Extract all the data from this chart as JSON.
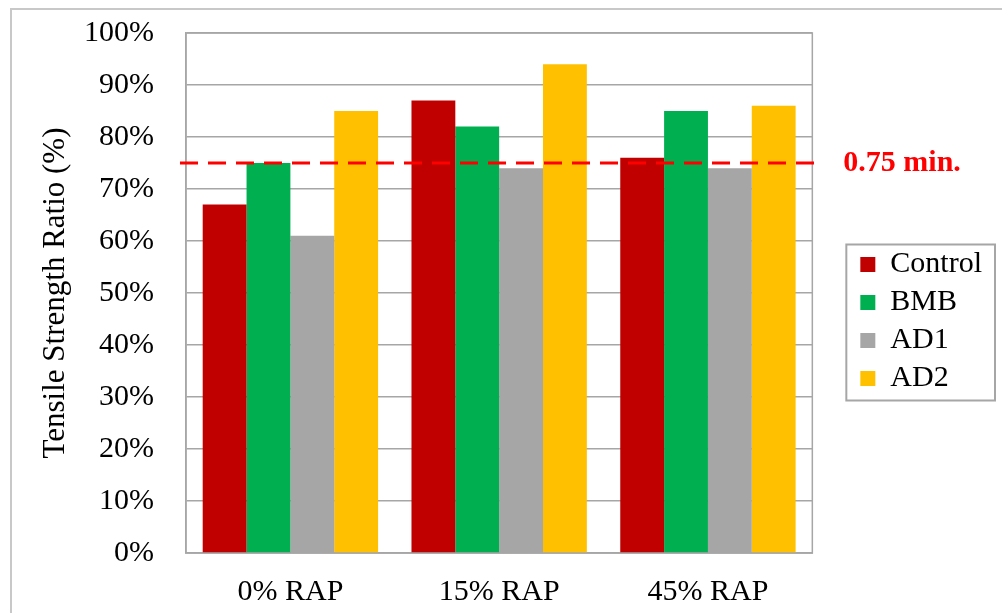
{
  "chart_data": {
    "type": "bar",
    "categories": [
      "0% RAP",
      "15% RAP",
      "45% RAP"
    ],
    "series": [
      {
        "name": "Control",
        "color": "#c00000",
        "values": [
          67,
          87,
          76
        ]
      },
      {
        "name": "BMB",
        "color": "#00b050",
        "values": [
          75,
          82,
          85
        ]
      },
      {
        "name": "AD1",
        "color": "#a6a6a6",
        "values": [
          61,
          74,
          74
        ]
      },
      {
        "name": "AD2",
        "color": "#ffc000",
        "values": [
          85,
          94,
          86
        ]
      }
    ],
    "ylabel": "Tensile Strength Ratio (%)",
    "ylim": [
      0,
      100
    ],
    "yticks": [
      {
        "value": 0,
        "label": "0%"
      },
      {
        "value": 10,
        "label": "10%"
      },
      {
        "value": 20,
        "label": "20%"
      },
      {
        "value": 30,
        "label": "30%"
      },
      {
        "value": 40,
        "label": "40%"
      },
      {
        "value": 50,
        "label": "50%"
      },
      {
        "value": 60,
        "label": "60%"
      },
      {
        "value": 70,
        "label": "70%"
      },
      {
        "value": 80,
        "label": "80%"
      },
      {
        "value": 90,
        "label": "90%"
      },
      {
        "value": 100,
        "label": "100%"
      }
    ],
    "ref_lines": [
      {
        "axis": "y",
        "value": 75,
        "label": "0.75 min.",
        "color": "#ff0000",
        "line_style": "dashed"
      }
    ],
    "grid": "y",
    "legend": "right"
  }
}
